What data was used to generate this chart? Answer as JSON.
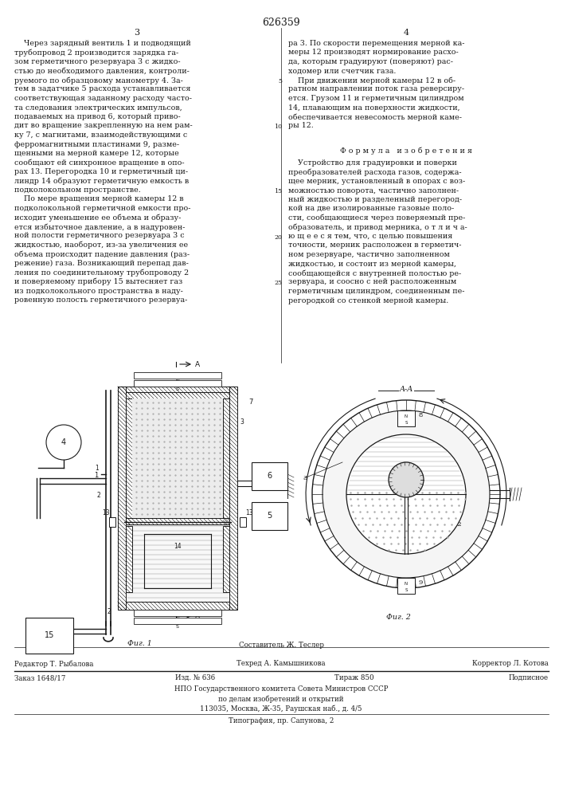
{
  "patent_number": "626359",
  "col_left": "3",
  "col_right": "4",
  "composer": "Составитель Ж. Теслер",
  "editor": "Редактор Т. Рыбалова",
  "techred": "Техред А. Камышникова",
  "corrector": "Корректор Л. Котова",
  "order": "Заказ 1648/17",
  "pub": "Изд. № 636",
  "copies": "Тираж 850",
  "signed": "Подписное",
  "org1": "НПО Государственного комитета Совета Министров СССР",
  "org2": "по делам изобретений и открытий",
  "address": "113035, Москва, Ж-35, Раушская наб., д. 4/5",
  "print": "Типография, пр. Сапунова, 2",
  "bg_color": "#ffffff",
  "text_color": "#1a1a1a",
  "font_size_body": 6.8,
  "font_size_small": 6.2
}
